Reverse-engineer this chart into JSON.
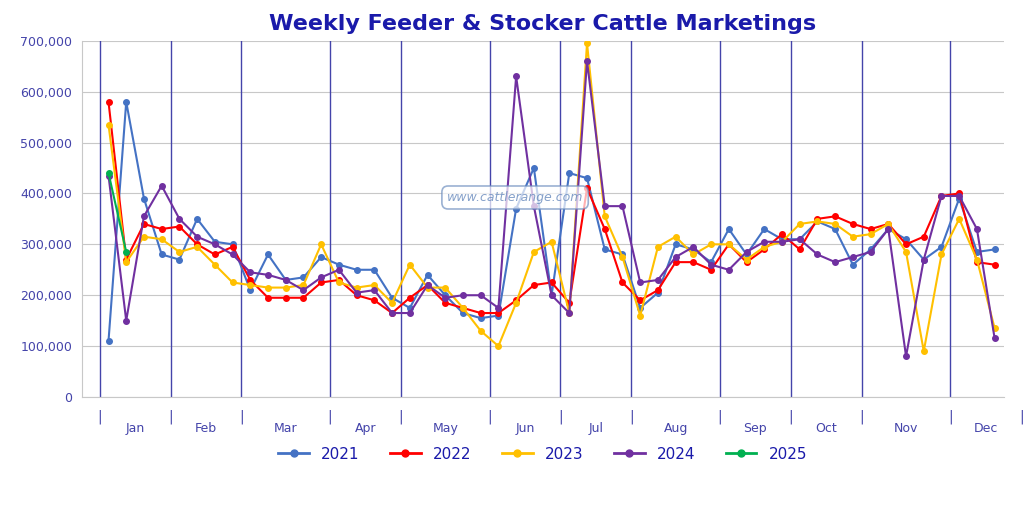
{
  "title": "Weekly Feeder & Stocker Cattle Marketings",
  "title_color": "#1a1aaa",
  "title_fontsize": 16,
  "background_color": "#ffffff",
  "watermark": "www.cattlerange.com",
  "ylim": [
    0,
    700000
  ],
  "yticks": [
    0,
    100000,
    200000,
    300000,
    400000,
    500000,
    600000,
    700000
  ],
  "ytick_labels": [
    "0",
    "100,000",
    "200,000",
    "300,000",
    "400,000",
    "500,000",
    "600,000",
    "700,000"
  ],
  "xlabel_months": [
    "Jan",
    "Feb",
    "Mar",
    "Apr",
    "May",
    "Jun",
    "Jul",
    "Aug",
    "Sep",
    "Oct",
    "Nov",
    "Dec"
  ],
  "series": {
    "2021": {
      "color": "#4472C4",
      "data": [
        110000,
        580000,
        390000,
        280000,
        270000,
        350000,
        305000,
        300000,
        210000,
        280000,
        230000,
        235000,
        275000,
        260000,
        250000,
        250000,
        195000,
        175000,
        240000,
        200000,
        165000,
        155000,
        160000,
        370000,
        450000,
        200000,
        440000,
        430000,
        290000,
        280000,
        175000,
        205000,
        300000,
        290000,
        265000,
        330000,
        280000,
        330000,
        310000,
        310000,
        345000,
        330000,
        260000,
        290000,
        330000,
        310000,
        270000,
        295000,
        390000,
        285000,
        290000
      ]
    },
    "2022": {
      "color": "#FF0000",
      "data": [
        580000,
        270000,
        340000,
        330000,
        335000,
        300000,
        280000,
        295000,
        230000,
        195000,
        195000,
        195000,
        225000,
        230000,
        200000,
        190000,
        165000,
        195000,
        220000,
        185000,
        175000,
        165000,
        165000,
        190000,
        220000,
        225000,
        185000,
        410000,
        330000,
        225000,
        190000,
        210000,
        265000,
        265000,
        250000,
        300000,
        265000,
        290000,
        320000,
        290000,
        350000,
        355000,
        340000,
        330000,
        340000,
        300000,
        315000,
        395000,
        400000,
        265000,
        260000
      ]
    },
    "2023": {
      "color": "#FFC000",
      "data": [
        535000,
        265000,
        315000,
        310000,
        285000,
        295000,
        260000,
        225000,
        220000,
        215000,
        215000,
        220000,
        300000,
        225000,
        215000,
        220000,
        185000,
        260000,
        215000,
        215000,
        175000,
        130000,
        100000,
        185000,
        285000,
        305000,
        165000,
        695000,
        355000,
        275000,
        160000,
        295000,
        315000,
        280000,
        300000,
        300000,
        270000,
        295000,
        305000,
        340000,
        345000,
        340000,
        315000,
        320000,
        340000,
        285000,
        90000,
        280000,
        350000,
        270000,
        135000
      ]
    },
    "2024": {
      "color": "#7030A0",
      "data": [
        435000,
        150000,
        355000,
        415000,
        350000,
        315000,
        300000,
        280000,
        245000,
        240000,
        230000,
        210000,
        235000,
        250000,
        205000,
        210000,
        165000,
        165000,
        220000,
        195000,
        200000,
        200000,
        175000,
        630000,
        375000,
        200000,
        165000,
        660000,
        375000,
        375000,
        225000,
        230000,
        275000,
        295000,
        260000,
        250000,
        285000,
        305000,
        305000,
        310000,
        280000,
        265000,
        275000,
        285000,
        330000,
        80000,
        270000,
        395000,
        395000,
        330000,
        115000
      ]
    },
    "2025": {
      "color": "#00B050",
      "data": [
        440000,
        285000,
        null,
        null,
        null,
        null,
        null,
        null,
        null,
        null,
        null,
        null,
        null,
        null,
        null,
        null,
        null,
        null,
        null,
        null,
        null,
        null,
        null,
        null,
        null,
        null,
        null,
        null,
        null,
        null,
        null,
        null,
        null,
        null,
        null,
        null,
        null,
        null,
        null,
        null,
        null,
        null,
        null,
        null,
        null,
        null,
        null,
        null,
        null,
        null,
        null
      ]
    }
  },
  "legend_order": [
    "2021",
    "2022",
    "2023",
    "2024",
    "2025"
  ],
  "grid_color": "#c8c8c8",
  "tick_color": "#4444aa",
  "n_points": 51,
  "weeks_per_month": [
    4,
    4,
    5,
    4,
    5,
    4,
    4,
    5,
    4,
    4,
    5,
    4
  ]
}
